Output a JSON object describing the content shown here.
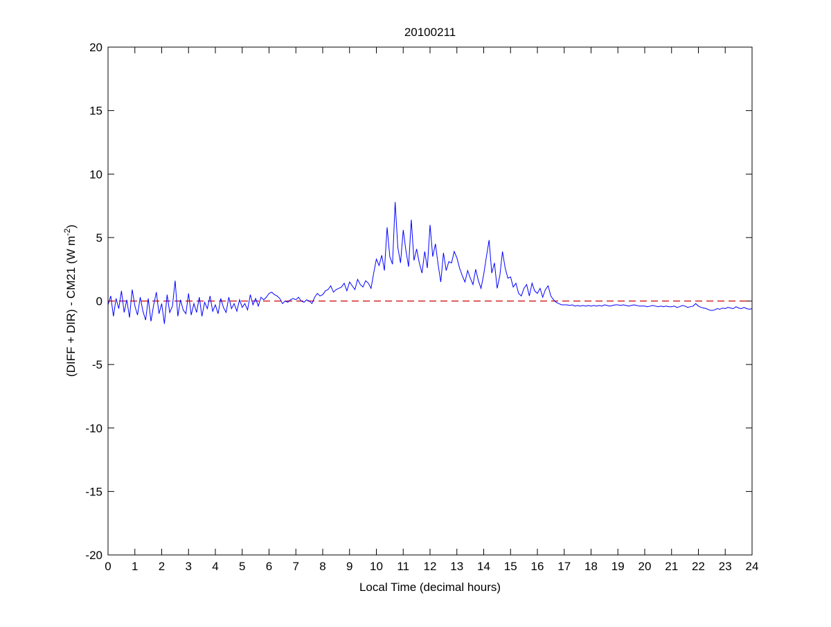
{
  "chart_data": {
    "type": "line",
    "title": "20100211",
    "xlabel": "Local Time (decimal hours)",
    "ylabel_main": "(DIFF + DIR) - CM21 (W m",
    "ylabel_sup": "-2",
    "ylabel_close": ")",
    "xlim": [
      0,
      24
    ],
    "ylim": [
      -20,
      20
    ],
    "xticks": [
      0,
      1,
      2,
      3,
      4,
      5,
      6,
      7,
      8,
      9,
      10,
      11,
      12,
      13,
      14,
      15,
      16,
      17,
      18,
      19,
      20,
      21,
      22,
      23,
      24
    ],
    "yticks": [
      -20,
      -15,
      -10,
      -5,
      0,
      5,
      10,
      15,
      20
    ],
    "grid": false,
    "reference_line": {
      "y": 0,
      "style": "dashed",
      "color": "#cc0000"
    },
    "series": [
      {
        "color": "#0000ff",
        "values": [
          -0.3,
          0.4,
          -1.2,
          0.2,
          -0.6,
          0.8,
          -0.9,
          0.1,
          -1.3,
          0.9,
          -0.4,
          -1.1,
          0.3,
          -0.8,
          -1.5,
          0.2,
          -1.6,
          -0.3,
          0.7,
          -1.0,
          -0.2,
          -1.8,
          0.5,
          -0.9,
          -0.4,
          1.6,
          -1.2,
          0.1,
          -0.7,
          -1.0,
          0.6,
          -1.1,
          -0.2,
          -0.9,
          0.3,
          -1.2,
          -0.1,
          -0.6,
          0.4,
          -0.8,
          -0.3,
          -1.0,
          0.2,
          -0.5,
          -0.9,
          0.3,
          -0.6,
          -0.2,
          -0.8,
          0.1,
          -0.5,
          -0.2,
          -0.7,
          0.5,
          -0.3,
          0.2,
          -0.4,
          0.3,
          0.1,
          0.3,
          0.6,
          0.7,
          0.5,
          0.4,
          0.2,
          -0.2,
          0.0,
          -0.1,
          0.1,
          0.2,
          0.1,
          0.3,
          0.0,
          -0.1,
          0.1,
          0.0,
          -0.2,
          0.3,
          0.6,
          0.4,
          0.5,
          0.8,
          0.9,
          1.2,
          0.7,
          0.9,
          1.0,
          1.1,
          1.4,
          0.8,
          1.5,
          1.2,
          0.9,
          1.7,
          1.3,
          1.1,
          1.6,
          1.4,
          1.0,
          2.2,
          3.3,
          2.8,
          3.6,
          2.4,
          5.8,
          3.5,
          2.9,
          7.8,
          4.2,
          3.0,
          5.6,
          4.0,
          2.7,
          6.4,
          3.2,
          4.1,
          3.0,
          2.2,
          3.9,
          2.6,
          6.0,
          3.5,
          4.5,
          2.9,
          1.5,
          3.8,
          2.4,
          3.1,
          3.0,
          3.9,
          3.4,
          2.6,
          2.0,
          1.5,
          2.4,
          1.8,
          1.3,
          2.5,
          1.6,
          1.0,
          2.1,
          3.5,
          4.8,
          2.2,
          3.0,
          1.0,
          2.0,
          3.9,
          2.6,
          1.8,
          1.9,
          1.1,
          1.4,
          0.6,
          0.4,
          1.0,
          1.3,
          0.4,
          1.4,
          0.8,
          0.6,
          1.0,
          0.3,
          0.9,
          1.2,
          0.4,
          0.1,
          -0.1,
          -0.2,
          -0.3,
          -0.3,
          -0.3,
          -0.35,
          -0.3,
          -0.4,
          -0.35,
          -0.4,
          -0.35,
          -0.4,
          -0.35,
          -0.4,
          -0.35,
          -0.4,
          -0.35,
          -0.4,
          -0.3,
          -0.35,
          -0.4,
          -0.35,
          -0.3,
          -0.3,
          -0.35,
          -0.3,
          -0.35,
          -0.4,
          -0.35,
          -0.3,
          -0.35,
          -0.4,
          -0.4,
          -0.4,
          -0.45,
          -0.4,
          -0.35,
          -0.4,
          -0.45,
          -0.4,
          -0.45,
          -0.4,
          -0.45,
          -0.45,
          -0.4,
          -0.5,
          -0.45,
          -0.35,
          -0.4,
          -0.5,
          -0.45,
          -0.4,
          -0.2,
          -0.4,
          -0.5,
          -0.55,
          -0.6,
          -0.7,
          -0.75,
          -0.7,
          -0.6,
          -0.65,
          -0.55,
          -0.6,
          -0.5,
          -0.55,
          -0.6,
          -0.45,
          -0.55,
          -0.6,
          -0.5,
          -0.6,
          -0.65,
          -0.6
        ]
      }
    ]
  }
}
